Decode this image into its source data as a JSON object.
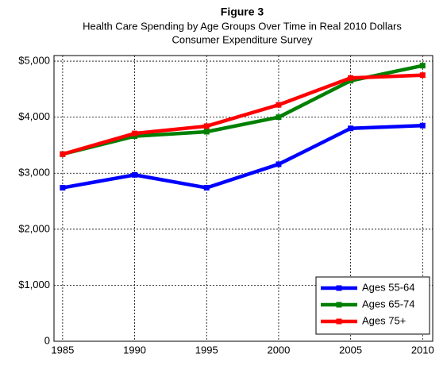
{
  "chart_data": {
    "type": "line",
    "title": "Figure 3",
    "subtitle": [
      "Health Care Spending by Age Groups Over Time in Real 2010 Dollars",
      "Consumer Expenditure Survey"
    ],
    "x": [
      1985,
      1990,
      1995,
      2000,
      2005,
      2010
    ],
    "series": [
      {
        "name": "Ages 55-64",
        "color": "#0000ff",
        "values": [
          2740,
          2970,
          2740,
          3160,
          3800,
          3850
        ]
      },
      {
        "name": "Ages 65-74",
        "color": "#008000",
        "values": [
          3340,
          3660,
          3740,
          4000,
          4650,
          4920
        ]
      },
      {
        "name": "Ages 75+",
        "color": "#ff0000",
        "values": [
          3340,
          3710,
          3840,
          4220,
          4700,
          4750
        ]
      }
    ],
    "xlim": [
      1984.4,
      2010.7
    ],
    "xticks": [
      1985,
      1990,
      1995,
      2000,
      2005,
      2010
    ],
    "ylim": [
      0,
      5100
    ],
    "yticks": [
      0,
      {
        "value": 1000,
        "label": "$1,000"
      },
      {
        "value": 2000,
        "label": "$2,000"
      },
      {
        "value": 3000,
        "label": "$3,000"
      },
      {
        "value": 4000,
        "label": "$4,000"
      },
      {
        "value": 5000,
        "label": "$5,000"
      }
    ],
    "grid": true,
    "legend": "lower right"
  }
}
